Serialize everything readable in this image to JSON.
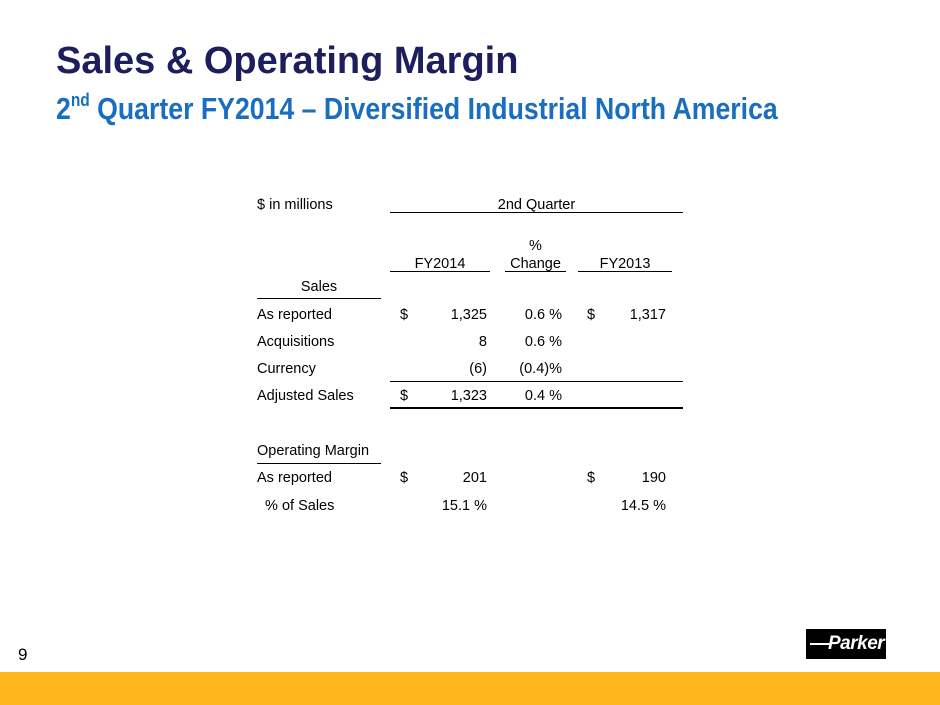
{
  "slide": {
    "title": "Sales & Operating Margin",
    "subtitle_pre": "2",
    "subtitle_sup": "nd",
    "subtitle_post": " Quarter FY2014 – Diversified Industrial North America",
    "page_number": "9",
    "logo": "Parker"
  },
  "table": {
    "units": "$  in millions",
    "period": "2nd Quarter",
    "pct_symbol": "%",
    "columns": [
      "FY2014",
      "Change",
      "FY2013"
    ],
    "sales_header": "Sales",
    "sales_rows": [
      {
        "label": "As reported",
        "cur1": "$",
        "fy2014": "1,325",
        "change": "0.6 %",
        "cur2": "$",
        "fy2013": "1,317"
      },
      {
        "label": "Acquisitions",
        "cur1": "",
        "fy2014": "8",
        "change": "0.6 %",
        "cur2": "",
        "fy2013": ""
      },
      {
        "label": "Currency",
        "cur1": "",
        "fy2014": "(6)",
        "change": "(0.4)%",
        "cur2": "",
        "fy2013": ""
      },
      {
        "label": "Adjusted Sales",
        "cur1": "$",
        "fy2014": "1,323",
        "change": "0.4 %",
        "cur2": "",
        "fy2013": ""
      }
    ],
    "margin_header": "Operating Margin",
    "margin_rows": [
      {
        "label": "As reported",
        "cur1": "$",
        "fy2014": "201",
        "change": "",
        "cur2": "$",
        "fy2013": "190"
      },
      {
        "label": "  % of Sales",
        "cur1": "",
        "fy2014": "15.1 %",
        "change": "",
        "cur2": "",
        "fy2013": "14.5 %"
      }
    ]
  },
  "colors": {
    "title": "#1c1f5c",
    "subtitle": "#1a6ec0",
    "bar": "#fdb71a"
  }
}
